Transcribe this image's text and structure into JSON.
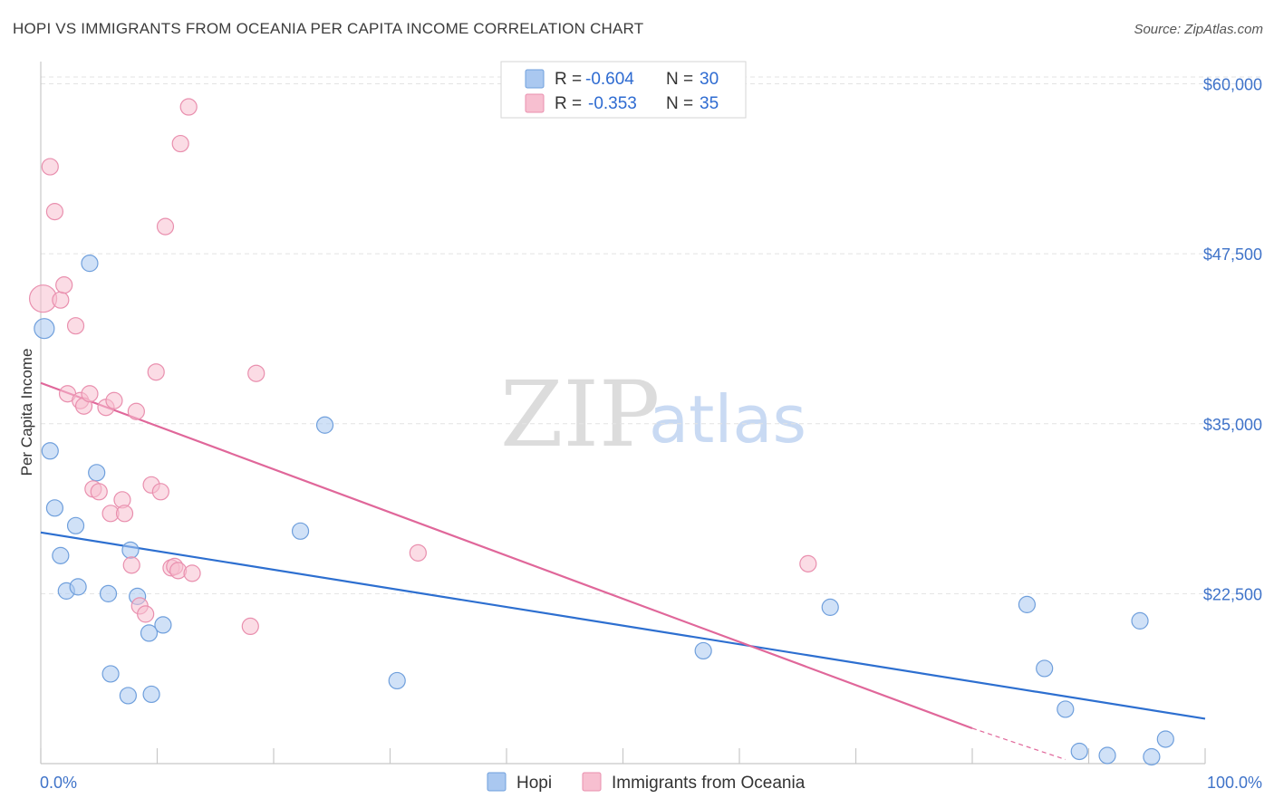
{
  "title": "HOPI VS IMMIGRANTS FROM OCEANIA PER CAPITA INCOME CORRELATION CHART",
  "source": "Source: ZipAtlas.com",
  "watermark": {
    "zip": "ZIP",
    "atlas": "atlas"
  },
  "colors": {
    "hopi_fill": "#aac8f0",
    "hopi_stroke": "#6f9fdc",
    "hopi_line": "#2d6fd0",
    "oceania_fill": "#f7bfd0",
    "oceania_stroke": "#e98fae",
    "oceania_line": "#e0679a",
    "grid": "#e3e3e3",
    "axis_text": "#3f73c9"
  },
  "legend": {
    "rows": [
      {
        "r_label": "R =",
        "r_value": "-0.604",
        "n_label": "N =",
        "n_value": "30"
      },
      {
        "r_label": "R =",
        "r_value": "-0.353",
        "n_label": "N =",
        "n_value": "35"
      }
    ]
  },
  "chart_data": {
    "type": "scatter",
    "title": "HOPI VS IMMIGRANTS FROM OCEANIA PER CAPITA INCOME CORRELATION CHART",
    "xlabel": "",
    "ylabel": "Per Capita Income",
    "xlim": [
      0,
      100
    ],
    "ylim": [
      10000,
      61500
    ],
    "x_tick_labels": [
      "0.0%",
      "100.0%"
    ],
    "y_ticks": [
      22500,
      35000,
      47500,
      60000
    ],
    "y_tick_labels": [
      "$22,500",
      "$35,000",
      "$47,500",
      "$60,000"
    ],
    "legend_placement": "top-center",
    "series": [
      {
        "name": "Hopi",
        "r": -0.604,
        "n": 30,
        "points": [
          [
            0.3,
            42000,
            22
          ],
          [
            0.8,
            33000,
            18
          ],
          [
            1.2,
            28800,
            18
          ],
          [
            1.7,
            25300,
            18
          ],
          [
            2.2,
            22700,
            18
          ],
          [
            3.0,
            27500,
            18
          ],
          [
            3.2,
            23000,
            18
          ],
          [
            4.2,
            46800,
            18
          ],
          [
            4.8,
            31400,
            18
          ],
          [
            5.8,
            22500,
            18
          ],
          [
            6.0,
            16600,
            18
          ],
          [
            7.5,
            15000,
            18
          ],
          [
            7.7,
            25700,
            18
          ],
          [
            8.3,
            22300,
            18
          ],
          [
            9.3,
            19600,
            18
          ],
          [
            9.5,
            15100,
            18
          ],
          [
            10.5,
            20200,
            18
          ],
          [
            22.3,
            27100,
            18
          ],
          [
            24.4,
            34900,
            18
          ],
          [
            30.6,
            16100,
            18
          ],
          [
            56.9,
            18300,
            18
          ],
          [
            67.8,
            21500,
            18
          ],
          [
            84.7,
            21700,
            18
          ],
          [
            86.2,
            17000,
            18
          ],
          [
            88.0,
            14000,
            18
          ],
          [
            89.2,
            10900,
            18
          ],
          [
            91.6,
            10600,
            18
          ],
          [
            94.4,
            20500,
            18
          ],
          [
            95.4,
            10500,
            18
          ],
          [
            96.6,
            11800,
            18
          ]
        ],
        "trendline": [
          [
            0,
            27000
          ],
          [
            100,
            13300
          ]
        ]
      },
      {
        "name": "Immigrants from Oceania",
        "r": -0.353,
        "n": 35,
        "points": [
          [
            0.2,
            44200,
            30
          ],
          [
            0.8,
            53900,
            18
          ],
          [
            1.2,
            50600,
            18
          ],
          [
            1.7,
            44100,
            18
          ],
          [
            2.0,
            45200,
            18
          ],
          [
            2.3,
            37200,
            18
          ],
          [
            3.0,
            42200,
            18
          ],
          [
            3.4,
            36700,
            18
          ],
          [
            3.7,
            36300,
            18
          ],
          [
            4.2,
            37200,
            18
          ],
          [
            4.5,
            30200,
            18
          ],
          [
            5.0,
            30000,
            18
          ],
          [
            5.6,
            36200,
            18
          ],
          [
            6.0,
            28400,
            18
          ],
          [
            6.3,
            36700,
            18
          ],
          [
            7.0,
            29400,
            18
          ],
          [
            7.2,
            28400,
            18
          ],
          [
            7.8,
            24600,
            18
          ],
          [
            8.2,
            35900,
            18
          ],
          [
            8.5,
            21600,
            18
          ],
          [
            9.0,
            21000,
            18
          ],
          [
            9.5,
            30500,
            18
          ],
          [
            9.9,
            38800,
            18
          ],
          [
            10.3,
            30000,
            18
          ],
          [
            10.7,
            49500,
            18
          ],
          [
            11.2,
            24400,
            18
          ],
          [
            11.5,
            24500,
            18
          ],
          [
            11.8,
            24200,
            18
          ],
          [
            12.0,
            55600,
            18
          ],
          [
            12.7,
            58300,
            18
          ],
          [
            13.0,
            24000,
            18
          ],
          [
            18.0,
            20100,
            18
          ],
          [
            18.5,
            38700,
            18
          ],
          [
            32.4,
            25500,
            18
          ],
          [
            65.9,
            24700,
            18
          ]
        ],
        "trendline": [
          [
            0,
            38000
          ],
          [
            80,
            12600
          ]
        ],
        "trendline_dashed": [
          [
            80,
            12600
          ],
          [
            88,
            10300
          ]
        ]
      }
    ]
  }
}
